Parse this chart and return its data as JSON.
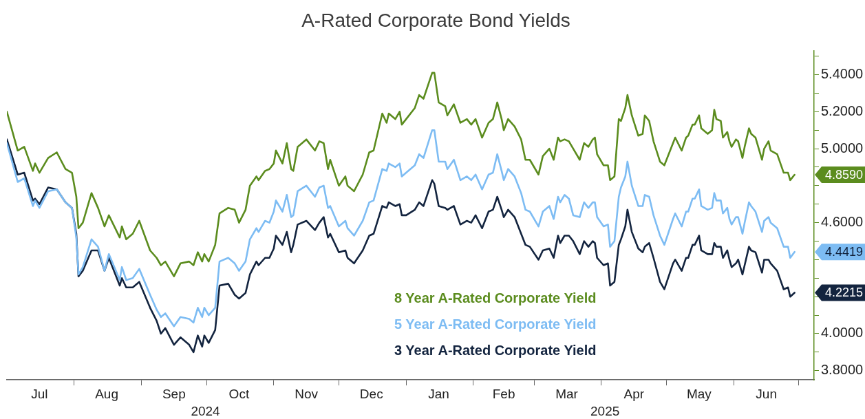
{
  "chart_data": {
    "type": "line",
    "title": "A-Rated Corporate Bond Yields",
    "x": [
      "2024-07-01",
      "2024-07-06",
      "2024-07-09",
      "2024-07-13",
      "2024-07-14",
      "2024-07-16",
      "2024-07-20",
      "2024-07-24",
      "2024-07-28",
      "2024-07-31",
      "2024-08-02",
      "2024-08-03",
      "2024-08-05",
      "2024-08-09",
      "2024-08-12",
      "2024-08-15",
      "2024-08-17",
      "2024-08-22",
      "2024-08-23",
      "2024-08-25",
      "2024-08-28",
      "2024-08-31",
      "2024-09-05",
      "2024-09-08",
      "2024-09-10",
      "2024-09-12",
      "2024-09-16",
      "2024-09-19",
      "2024-09-23",
      "2024-09-25",
      "2024-09-27",
      "2024-09-29",
      "2024-09-30",
      "2024-10-02",
      "2024-10-05",
      "2024-10-07",
      "2024-10-11",
      "2024-10-14",
      "2024-10-16",
      "2024-10-19",
      "2024-10-21",
      "2024-10-24",
      "2024-10-25",
      "2024-10-28",
      "2024-10-30",
      "2024-11-01",
      "2024-11-02",
      "2024-11-05",
      "2024-11-07",
      "2024-11-09",
      "2024-11-10",
      "2024-11-12",
      "2024-11-16",
      "2024-11-20",
      "2024-11-22",
      "2024-11-24",
      "2024-11-26",
      "2024-11-27",
      "2024-12-01",
      "2024-12-04",
      "2024-12-05",
      "2024-12-08",
      "2024-12-12",
      "2024-12-15",
      "2024-12-17",
      "2024-12-21",
      "2024-12-23",
      "2024-12-24",
      "2024-12-27",
      "2024-12-29",
      "2024-12-30",
      "2025-01-01",
      "2025-01-05",
      "2025-01-07",
      "2025-01-09",
      "2025-01-13",
      "2025-01-14",
      "2025-01-16",
      "2025-01-19",
      "2025-01-20",
      "2025-01-23",
      "2025-01-26",
      "2025-01-29",
      "2025-01-31",
      "2025-02-02",
      "2025-02-05",
      "2025-02-08",
      "2025-02-10",
      "2025-02-12",
      "2025-02-14",
      "2025-02-15",
      "2025-02-17",
      "2025-02-20",
      "2025-02-23",
      "2025-02-25",
      "2025-02-27",
      "2025-03-03",
      "2025-03-05",
      "2025-03-08",
      "2025-03-10",
      "2025-03-12",
      "2025-03-13",
      "2025-03-15",
      "2025-03-17",
      "2025-03-19",
      "2025-03-22",
      "2025-03-24",
      "2025-03-26",
      "2025-03-28",
      "2025-03-29",
      "2025-03-30",
      "2025-04-02",
      "2025-04-04",
      "2025-04-05",
      "2025-04-07",
      "2025-04-09",
      "2025-04-10",
      "2025-04-12",
      "2025-04-13",
      "2025-04-15",
      "2025-04-18",
      "2025-04-20",
      "2025-04-21",
      "2025-04-23",
      "2025-04-25",
      "2025-04-28",
      "2025-04-30",
      "2025-05-04",
      "2025-05-05",
      "2025-05-08",
      "2025-05-10",
      "2025-05-11",
      "2025-05-13",
      "2025-05-14",
      "2025-05-16",
      "2025-05-17",
      "2025-05-20",
      "2025-05-22",
      "2025-05-23",
      "2025-05-24",
      "2025-05-26",
      "2025-05-27",
      "2025-05-29",
      "2025-05-30",
      "2025-05-31",
      "2025-06-02",
      "2025-06-03",
      "2025-06-05",
      "2025-06-06",
      "2025-06-08",
      "2025-06-09",
      "2025-06-11",
      "2025-06-14",
      "2025-06-15",
      "2025-06-17",
      "2025-06-18",
      "2025-06-21",
      "2025-06-24",
      "2025-06-26",
      "2025-06-27",
      "2025-06-29"
    ],
    "series": [
      {
        "name": "8 Year A-Rated Corporate Yield",
        "color": "#5b8c1e",
        "values": [
          5.2,
          4.99,
          5.01,
          4.88,
          4.92,
          4.87,
          4.95,
          4.98,
          4.89,
          4.87,
          4.74,
          4.57,
          4.6,
          4.76,
          4.68,
          4.58,
          4.64,
          4.52,
          4.58,
          4.51,
          4.54,
          4.61,
          4.45,
          4.41,
          4.37,
          4.39,
          4.31,
          4.38,
          4.39,
          4.37,
          4.44,
          4.39,
          4.43,
          4.39,
          4.48,
          4.65,
          4.68,
          4.67,
          4.6,
          4.67,
          4.8,
          4.85,
          4.83,
          4.88,
          4.89,
          4.92,
          4.99,
          4.92,
          5.03,
          4.89,
          4.88,
          5.01,
          5.05,
          4.99,
          5.04,
          5.03,
          4.89,
          4.94,
          4.8,
          4.85,
          4.8,
          4.77,
          4.86,
          4.98,
          4.99,
          5.19,
          5.14,
          5.19,
          5.16,
          5.2,
          5.13,
          5.16,
          5.22,
          5.29,
          5.27,
          5.41,
          5.41,
          5.25,
          5.23,
          5.18,
          5.24,
          5.14,
          5.16,
          5.13,
          5.16,
          5.06,
          5.14,
          5.16,
          5.25,
          5.16,
          5.1,
          5.16,
          5.12,
          5.05,
          4.94,
          4.94,
          4.86,
          4.96,
          5.0,
          4.94,
          5.06,
          5.04,
          5.05,
          5.04,
          5.0,
          4.94,
          5.03,
          5.01,
          5.05,
          5.06,
          4.97,
          4.91,
          4.91,
          4.83,
          4.85,
          5.16,
          5.15,
          5.22,
          5.29,
          5.18,
          5.07,
          5.08,
          5.18,
          5.15,
          5.04,
          4.93,
          4.91,
          5.03,
          5.06,
          4.99,
          5.06,
          5.07,
          5.13,
          5.13,
          5.18,
          5.11,
          5.08,
          5.1,
          5.21,
          5.16,
          5.15,
          5.06,
          5.09,
          5.04,
          5.01,
          5.05,
          5.04,
          4.95,
          5.01,
          5.11,
          5.08,
          5.06,
          4.94,
          5.0,
          5.04,
          4.99,
          4.97,
          4.87,
          4.87,
          4.83,
          4.859
        ]
      },
      {
        "name": "5 Year A-Rated Corporate Yield",
        "color": "#7dbcf3",
        "values": [
          5.03,
          4.82,
          4.84,
          4.69,
          4.72,
          4.68,
          4.77,
          4.78,
          4.71,
          4.68,
          4.52,
          4.32,
          4.36,
          4.51,
          4.47,
          4.34,
          4.43,
          4.29,
          4.36,
          4.29,
          4.3,
          4.35,
          4.21,
          4.13,
          4.09,
          4.11,
          4.04,
          4.09,
          4.08,
          4.06,
          4.14,
          4.09,
          4.14,
          4.1,
          4.14,
          4.39,
          4.41,
          4.38,
          4.34,
          4.39,
          4.51,
          4.57,
          4.55,
          4.61,
          4.6,
          4.66,
          4.72,
          4.66,
          4.75,
          4.63,
          4.64,
          4.77,
          4.8,
          4.74,
          4.79,
          4.8,
          4.68,
          4.69,
          4.58,
          4.61,
          4.57,
          4.53,
          4.61,
          4.71,
          4.72,
          4.89,
          4.88,
          4.92,
          4.9,
          4.92,
          4.85,
          4.87,
          4.91,
          4.97,
          4.95,
          5.1,
          5.1,
          4.93,
          4.93,
          4.89,
          4.94,
          4.83,
          4.85,
          4.83,
          4.86,
          4.78,
          4.86,
          4.87,
          4.97,
          4.88,
          4.83,
          4.89,
          4.85,
          4.76,
          4.67,
          4.66,
          4.58,
          4.66,
          4.69,
          4.62,
          4.74,
          4.71,
          4.75,
          4.73,
          4.64,
          4.63,
          4.71,
          4.68,
          4.71,
          4.71,
          4.63,
          4.58,
          4.59,
          4.47,
          4.5,
          4.74,
          4.79,
          4.85,
          4.93,
          4.8,
          4.69,
          4.69,
          4.75,
          4.74,
          4.64,
          4.53,
          4.48,
          4.62,
          4.65,
          4.58,
          4.66,
          4.66,
          4.73,
          4.73,
          4.78,
          4.69,
          4.67,
          4.68,
          4.76,
          4.72,
          4.72,
          4.65,
          4.68,
          4.62,
          4.59,
          4.63,
          4.63,
          4.54,
          4.6,
          4.71,
          4.69,
          4.66,
          4.55,
          4.61,
          4.63,
          4.6,
          4.57,
          4.47,
          4.47,
          4.41,
          4.4419
        ]
      },
      {
        "name": "3 Year A-Rated Corporate Yield",
        "color": "#13243f",
        "values": [
          5.05,
          4.86,
          4.87,
          4.72,
          4.73,
          4.7,
          4.79,
          4.78,
          4.71,
          4.68,
          4.54,
          4.31,
          4.34,
          4.45,
          4.45,
          4.34,
          4.41,
          4.26,
          4.3,
          4.25,
          4.25,
          4.28,
          4.14,
          4.07,
          4.0,
          4.03,
          3.94,
          3.98,
          3.94,
          3.9,
          3.99,
          3.93,
          3.99,
          3.95,
          4.02,
          4.26,
          4.27,
          4.21,
          4.19,
          4.22,
          4.32,
          4.39,
          4.37,
          4.41,
          4.41,
          4.46,
          4.53,
          4.48,
          4.55,
          4.44,
          4.48,
          4.59,
          4.61,
          4.56,
          4.6,
          4.63,
          4.52,
          4.54,
          4.44,
          4.45,
          4.41,
          4.38,
          4.45,
          4.53,
          4.54,
          4.69,
          4.68,
          4.71,
          4.69,
          4.7,
          4.64,
          4.64,
          4.67,
          4.71,
          4.69,
          4.83,
          4.81,
          4.69,
          4.68,
          4.67,
          4.69,
          4.59,
          4.61,
          4.6,
          4.64,
          4.57,
          4.66,
          4.67,
          4.74,
          4.67,
          4.63,
          4.67,
          4.63,
          4.54,
          4.48,
          4.47,
          4.4,
          4.45,
          4.46,
          4.41,
          4.53,
          4.49,
          4.53,
          4.53,
          4.5,
          4.43,
          4.5,
          4.47,
          4.5,
          4.49,
          4.41,
          4.37,
          4.38,
          4.26,
          4.28,
          4.48,
          4.51,
          4.58,
          4.67,
          4.55,
          4.46,
          4.44,
          4.47,
          4.49,
          4.41,
          4.28,
          4.24,
          4.38,
          4.4,
          4.34,
          4.41,
          4.41,
          4.48,
          4.48,
          4.53,
          4.45,
          4.43,
          4.43,
          4.49,
          4.47,
          4.47,
          4.41,
          4.45,
          4.4,
          4.36,
          4.38,
          4.4,
          4.32,
          4.37,
          4.47,
          4.45,
          4.44,
          4.33,
          4.4,
          4.4,
          4.38,
          4.34,
          4.24,
          4.25,
          4.2,
          4.2215
        ]
      }
    ],
    "xlim": [
      "2024-07-01",
      "2025-07-08"
    ],
    "xticks": [
      {
        "value": "2024-07-16",
        "label": "Jul"
      },
      {
        "value": "2024-08-01",
        "label": null
      },
      {
        "value": "2024-08-16",
        "label": "Aug"
      },
      {
        "value": "2024-09-01",
        "label": null
      },
      {
        "value": "2024-09-16",
        "label": "Sep"
      },
      {
        "value": "2024-10-01",
        "label": null
      },
      {
        "value": "2024-10-16",
        "label": "Oct"
      },
      {
        "value": "2024-11-01",
        "label": null
      },
      {
        "value": "2024-11-16",
        "label": "Nov"
      },
      {
        "value": "2024-12-01",
        "label": null
      },
      {
        "value": "2024-12-16",
        "label": "Dec"
      },
      {
        "value": "2025-01-01",
        "label": null
      },
      {
        "value": "2025-01-16",
        "label": "Jan"
      },
      {
        "value": "2025-02-01",
        "label": null
      },
      {
        "value": "2025-02-15",
        "label": "Feb"
      },
      {
        "value": "2025-03-01",
        "label": null
      },
      {
        "value": "2025-03-16",
        "label": "Mar"
      },
      {
        "value": "2025-04-01",
        "label": null
      },
      {
        "value": "2025-04-16",
        "label": "Apr"
      },
      {
        "value": "2025-05-01",
        "label": null
      },
      {
        "value": "2025-05-16",
        "label": "May"
      },
      {
        "value": "2025-06-01",
        "label": null
      },
      {
        "value": "2025-06-16",
        "label": "Jun"
      },
      {
        "value": "2025-07-01",
        "label": null
      }
    ],
    "ylim": [
      3.75,
      5.53
    ],
    "yticks": [
      {
        "value": 3.8,
        "label": "3.8000"
      },
      {
        "value": 3.9,
        "label": null
      },
      {
        "value": 4.0,
        "label": "4.0000"
      },
      {
        "value": 4.1,
        "label": null
      },
      {
        "value": 4.2,
        "label": null
      },
      {
        "value": 4.3,
        "label": null
      },
      {
        "value": 4.4,
        "label": null
      },
      {
        "value": 4.5,
        "label": null
      },
      {
        "value": 4.6,
        "label": "4.6000"
      },
      {
        "value": 4.7,
        "label": null
      },
      {
        "value": 4.8,
        "label": null
      },
      {
        "value": 4.9,
        "label": null
      },
      {
        "value": 5.0,
        "label": "5.0000"
      },
      {
        "value": 5.1,
        "label": null
      },
      {
        "value": 5.2,
        "label": "5.2000"
      },
      {
        "value": 5.3,
        "label": null
      },
      {
        "value": 5.4,
        "label": "5.4000"
      },
      {
        "value": 5.5,
        "label": null
      }
    ],
    "annotations": [
      {
        "text": "4.8590",
        "x": "2025-06-29",
        "y": 4.859
      },
      {
        "text": "4.4419",
        "x": "2025-06-29",
        "y": 4.4419
      },
      {
        "text": "4.2215",
        "x": "2025-06-29",
        "y": 4.2215
      },
      "2024",
      "2025"
    ],
    "legend": "bottom"
  }
}
